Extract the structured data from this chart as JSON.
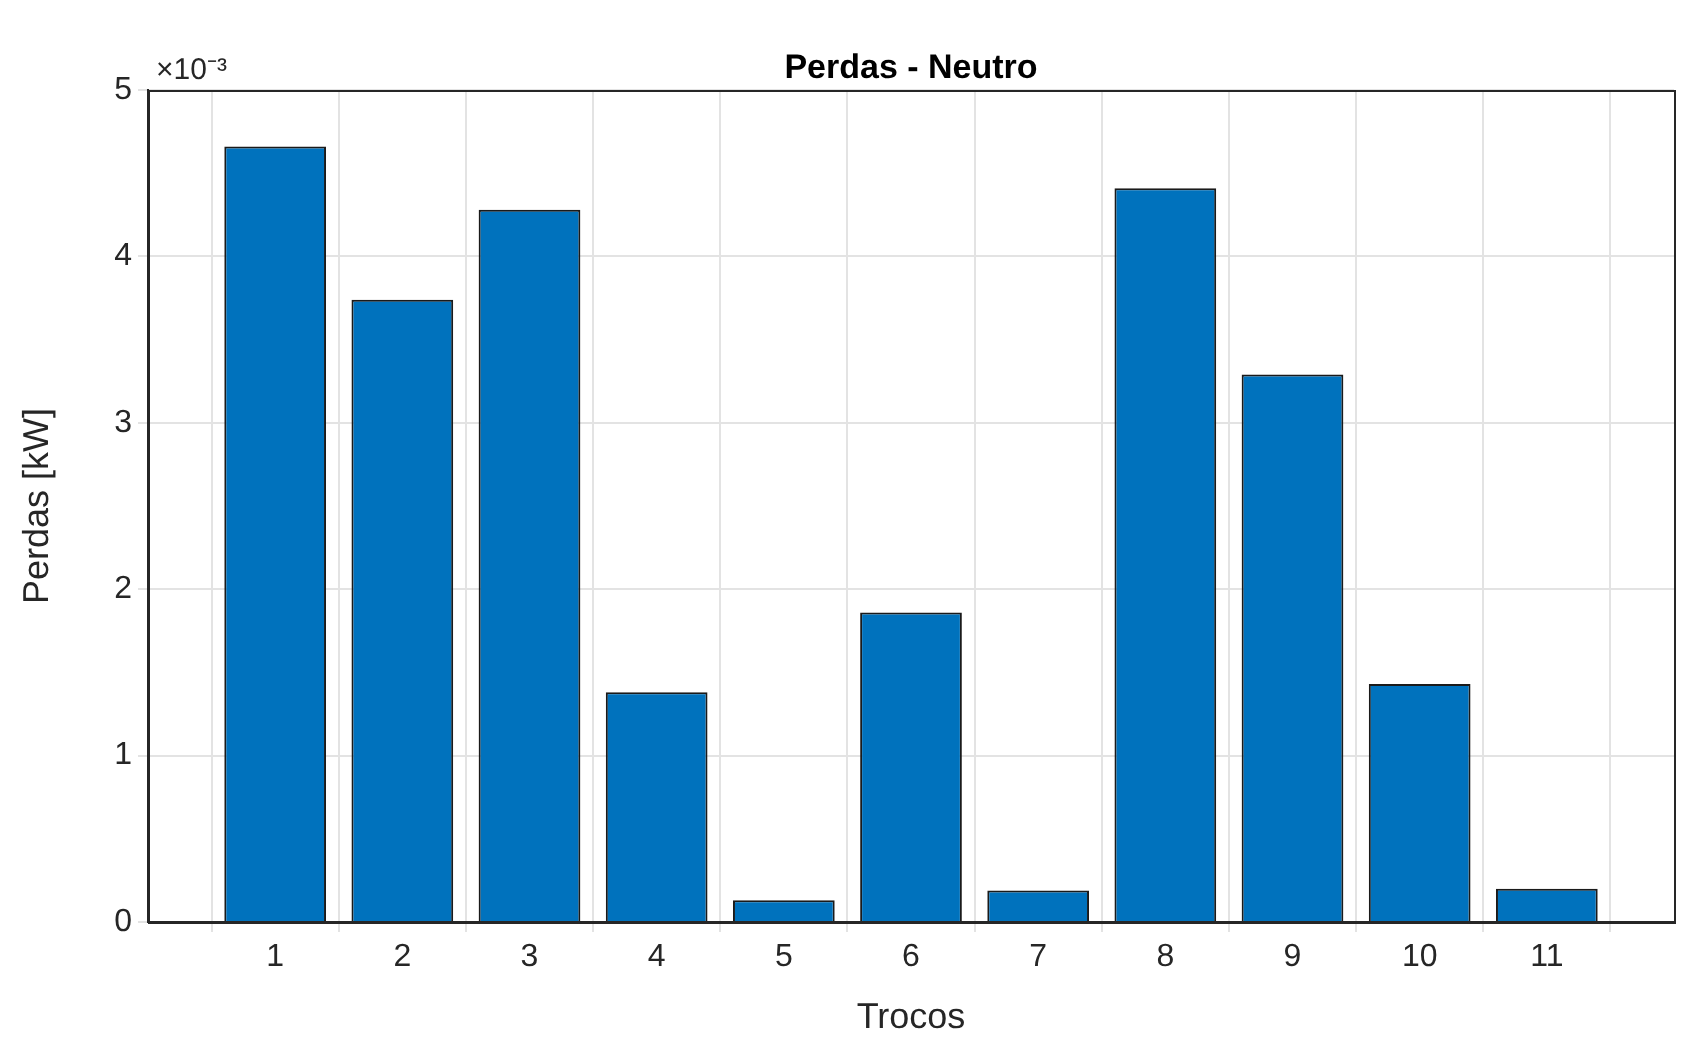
{
  "chart_data": {
    "type": "bar",
    "title": "Perdas - Neutro",
    "xlabel": "Trocos",
    "ylabel": "Perdas [kW]",
    "x": [
      1,
      2,
      3,
      4,
      5,
      6,
      7,
      8,
      9,
      10,
      11
    ],
    "values": [
      4.66,
      3.74,
      4.28,
      1.38,
      0.13,
      1.86,
      0.19,
      4.41,
      3.29,
      1.43,
      0.2
    ],
    "color": "#0072bd",
    "xlim": [
      0,
      12
    ],
    "xticks": [
      1,
      2,
      3,
      4,
      5,
      6,
      7,
      8,
      9,
      10,
      11
    ],
    "ylim": [
      0,
      5
    ],
    "yticks": [
      0,
      1,
      2,
      3,
      4,
      5
    ],
    "annotations": [
      "×10⁻³"
    ],
    "grid": true,
    "legend": false
  }
}
